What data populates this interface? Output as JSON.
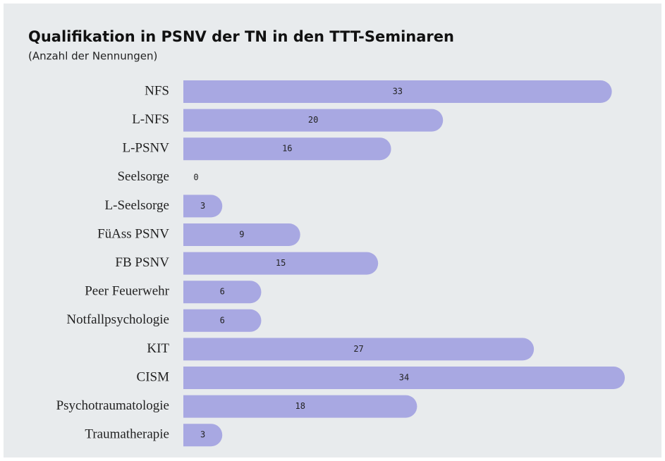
{
  "chart_data": {
    "type": "bar",
    "orientation": "horizontal",
    "title": "Qualifikation in PSNV der TN in den TTT-Seminaren",
    "subtitle": "(Anzahl der Nennungen)",
    "categories": [
      "NFS",
      "L-NFS",
      "L-PSNV",
      "Seelsorge",
      "L-Seelsorge",
      "FüAss PSNV",
      "FB PSNV",
      "Peer Feuerwehr",
      "Notfallpsychologie",
      "KIT",
      "CISM",
      "Psychotraumatologie",
      "Traumatherapie"
    ],
    "values": [
      33,
      20,
      16,
      0,
      3,
      9,
      15,
      6,
      6,
      27,
      34,
      18,
      3
    ],
    "color": "#a8a8e2"
  }
}
